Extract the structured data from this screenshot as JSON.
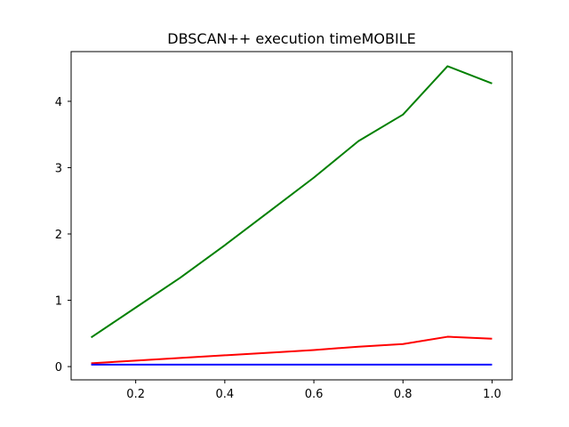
{
  "chart_data": {
    "type": "line",
    "title": "DBSCAN++  execution timeMOBILE",
    "xlabel": "",
    "ylabel": "",
    "xlim": [
      0.055,
      1.045
    ],
    "ylim": [
      -0.2,
      4.75
    ],
    "xticks": [
      0.2,
      0.4,
      0.6,
      0.8,
      1.0
    ],
    "xtick_labels": [
      "0.2",
      "0.4",
      "0.6",
      "0.8",
      "1.0"
    ],
    "yticks": [
      0,
      1,
      2,
      3,
      4
    ],
    "ytick_labels": [
      "0",
      "1",
      "2",
      "3",
      "4"
    ],
    "grid": false,
    "x": [
      0.1,
      0.2,
      0.3,
      0.4,
      0.5,
      0.6,
      0.7,
      0.8,
      0.9,
      1.0
    ],
    "series": [
      {
        "color": "#008000",
        "values": [
          0.44,
          0.89,
          1.34,
          1.83,
          2.34,
          2.85,
          3.4,
          3.8,
          4.53,
          4.27
        ]
      },
      {
        "color": "#ff0000",
        "values": [
          0.05,
          0.09,
          0.13,
          0.17,
          0.21,
          0.25,
          0.3,
          0.34,
          0.45,
          0.42
        ]
      },
      {
        "color": "#0000ff",
        "values": [
          0.03,
          0.03,
          0.03,
          0.03,
          0.03,
          0.03,
          0.03,
          0.03,
          0.03,
          0.03
        ]
      }
    ]
  }
}
